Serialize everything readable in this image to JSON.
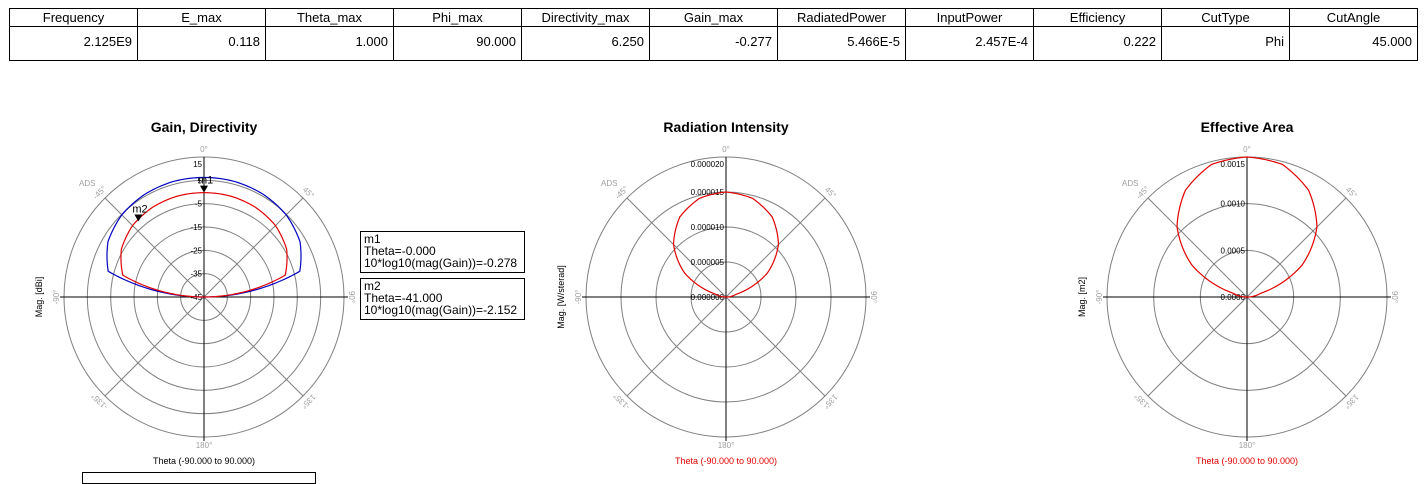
{
  "table": {
    "headers": [
      "Frequency",
      "E_max",
      "Theta_max",
      "Phi_max",
      "Directivity_max",
      "Gain_max",
      "RadiatedPower",
      "InputPower",
      "Efficiency",
      "CutType",
      "CutAngle"
    ],
    "values": [
      "2.125E9",
      "0.118",
      "1.000",
      "90.000",
      "6.250",
      "-0.277",
      "5.466E-5",
      "2.457E-4",
      "0.222",
      "Phi",
      "45.000"
    ]
  },
  "markers": [
    {
      "name": "m1",
      "line1": "Theta=-0.000",
      "line2": "10*log10(mag(Gain))=-0.278"
    },
    {
      "name": "m2",
      "line1": "Theta=-41.000",
      "line2": "10*log10(mag(Gain))=-2.152"
    }
  ],
  "colors": {
    "gain": "#e00000",
    "directivity": "#0000c0",
    "intensity": "#e00000",
    "area": "#e00000",
    "grid": "#808080"
  },
  "chart_data": [
    {
      "type": "polar",
      "title": "Gain, Directivity",
      "ylabel": "Mag. [dBi]",
      "xlabel": "Theta (-90.000 to 90.000)",
      "watermark": "ADS",
      "radial_ticks": [
        "15",
        "5",
        "-5",
        "-15",
        "-25",
        "-35",
        "-45"
      ],
      "angle_labels": {
        "top": "0°",
        "top_right": "45°",
        "right": "90°",
        "bottom_right": "135°",
        "bottom": "180°",
        "bottom_left": "-135°",
        "left": "-90°",
        "top_left": "-45°"
      },
      "rlim": [
        -45,
        15
      ],
      "series": [
        {
          "name": "Directivity",
          "theta": [
            -90,
            -75,
            -60,
            -45,
            -30,
            -15,
            0,
            15,
            30,
            45,
            60,
            75,
            90
          ],
          "values": [
            -45,
            -2.5,
            2.5,
            4.8,
            5.8,
            6.2,
            6.25,
            6.2,
            5.8,
            4.8,
            2.5,
            -2.5,
            -45
          ]
        },
        {
          "name": "Gain",
          "theta": [
            -90,
            -75,
            -60,
            -45,
            -30,
            -15,
            0,
            15,
            30,
            45,
            60,
            75,
            90
          ],
          "values": [
            -45,
            -9,
            -4.1,
            -1.7,
            -0.7,
            -0.3,
            -0.278,
            -0.3,
            -0.7,
            -1.7,
            -4.1,
            -9,
            -45
          ]
        }
      ],
      "markers": [
        {
          "name": "m1",
          "theta": 0,
          "value": -0.278
        },
        {
          "name": "m2",
          "theta": -41,
          "value": -2.152
        }
      ]
    },
    {
      "type": "polar",
      "title": "Radiation Intensity",
      "ylabel": "Mag. [W/sterad]",
      "xlabel": "Theta (-90.000 to 90.000)",
      "watermark": "ADS",
      "radial_ticks": [
        "0.000020",
        "0.000015",
        "0.000010",
        "0.000005",
        "0.000000"
      ],
      "angle_labels": {
        "top": "0°",
        "top_right": "45°",
        "right": "90°",
        "bottom_right": "135°",
        "bottom": "180°",
        "bottom_left": "-135°",
        "left": "-90°",
        "top_left": "-45°"
      },
      "rlim": [
        0,
        2e-05
      ],
      "series": [
        {
          "name": "Radiation Intensity",
          "theta": [
            -90,
            -75,
            -60,
            -45,
            -30,
            -15,
            0,
            15,
            30,
            45,
            60,
            75,
            90
          ],
          "values": [
            0,
            1.5e-06,
            6.8e-06,
            1.06e-05,
            1.32e-05,
            1.46e-05,
            1.5e-05,
            1.46e-05,
            1.32e-05,
            1.06e-05,
            6.8e-06,
            1.5e-06,
            0
          ]
        }
      ]
    },
    {
      "type": "polar",
      "title": "Effective Area",
      "ylabel": "Mag. [m2]",
      "xlabel": "Theta (-90.000 to 90.000)",
      "watermark": "ADS",
      "radial_ticks": [
        "0.0015",
        "0.0010",
        "0.0005",
        "0.0000"
      ],
      "angle_labels": {
        "top": "0°",
        "top_right": "45°",
        "right": "90°",
        "bottom_right": "135°",
        "bottom": "180°",
        "bottom_left": "-135°",
        "left": "-90°",
        "top_left": "-45°"
      },
      "rlim": [
        0,
        0.0015
      ],
      "series": [
        {
          "name": "Effective Area",
          "theta": [
            -90,
            -75,
            -60,
            -45,
            -30,
            -15,
            0,
            15,
            30,
            45,
            60,
            75,
            90
          ],
          "values": [
            0,
            0.00015,
            0.00068,
            0.00106,
            0.00132,
            0.00147,
            0.0015,
            0.00147,
            0.00132,
            0.00106,
            0.00068,
            0.00015,
            0
          ]
        }
      ]
    }
  ]
}
